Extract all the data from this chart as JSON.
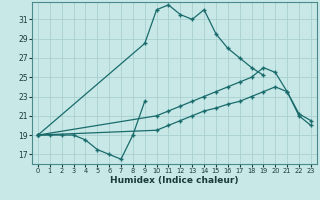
{
  "xlabel": "Humidex (Indice chaleur)",
  "bg_color": "#c8e8e8",
  "grid_color": "#a8d0d0",
  "line_color": "#1a6b6b",
  "xlim": [
    -0.5,
    23.5
  ],
  "ylim": [
    16.0,
    32.8
  ],
  "xticks": [
    0,
    1,
    2,
    3,
    4,
    5,
    6,
    7,
    8,
    9,
    10,
    11,
    12,
    13,
    14,
    15,
    16,
    17,
    18,
    19,
    20,
    21,
    22,
    23
  ],
  "yticks": [
    17,
    19,
    21,
    23,
    25,
    27,
    29,
    31
  ],
  "lines": [
    {
      "x": [
        0,
        9,
        10,
        11,
        12,
        13,
        14,
        15,
        16,
        17,
        18,
        19
      ],
      "y": [
        19,
        28.5,
        32.0,
        32.5,
        31.5,
        31.0,
        32.0,
        29.5,
        28.0,
        27.0,
        26.0,
        25.2
      ]
    },
    {
      "x": [
        0,
        1,
        2,
        3,
        4,
        5,
        6,
        7,
        8,
        9
      ],
      "y": [
        19,
        19,
        19,
        19,
        18.5,
        17.5,
        17.0,
        16.5,
        19.0,
        22.5
      ]
    },
    {
      "x": [
        0,
        10,
        11,
        12,
        13,
        14,
        15,
        16,
        17,
        18,
        19,
        20,
        21,
        22,
        23
      ],
      "y": [
        19,
        21.0,
        21.5,
        22.0,
        22.5,
        23.0,
        23.5,
        24.0,
        24.5,
        25.0,
        26.0,
        25.5,
        23.5,
        21.2,
        20.5
      ]
    },
    {
      "x": [
        0,
        10,
        11,
        12,
        13,
        14,
        15,
        16,
        17,
        18,
        19,
        20,
        21,
        22,
        23
      ],
      "y": [
        19,
        19.5,
        20.0,
        20.5,
        21.0,
        21.5,
        21.8,
        22.2,
        22.5,
        23.0,
        23.5,
        24.0,
        23.5,
        21.0,
        20.0
      ]
    }
  ]
}
